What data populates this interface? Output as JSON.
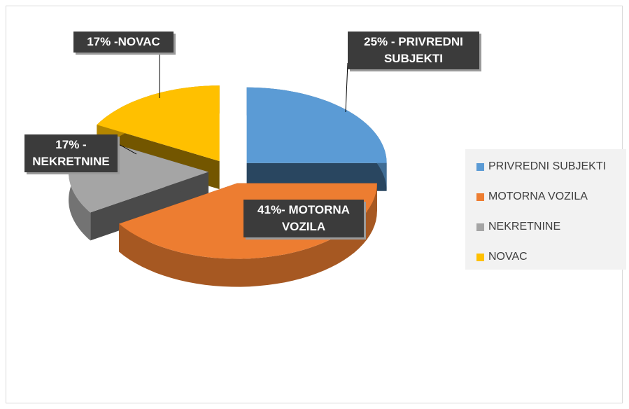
{
  "chart_data": {
    "type": "pie3d",
    "categories": [
      "PRIVREDNI SUBJEKTI",
      "MOTORNA VOZILA",
      "NEKRETNINE",
      "NOVAC"
    ],
    "values": [
      25,
      41,
      17,
      17
    ],
    "value_labels": [
      "25% - PRIVREDNI SUBJEKTI",
      "41%- MOTORNA VOZILA",
      "17% - NEKRETNINE",
      "17% -NOVAC"
    ],
    "colors": [
      "#5b9bd5",
      "#ed7d31",
      "#a5a5a5",
      "#ffc000"
    ],
    "legend": "right"
  }
}
